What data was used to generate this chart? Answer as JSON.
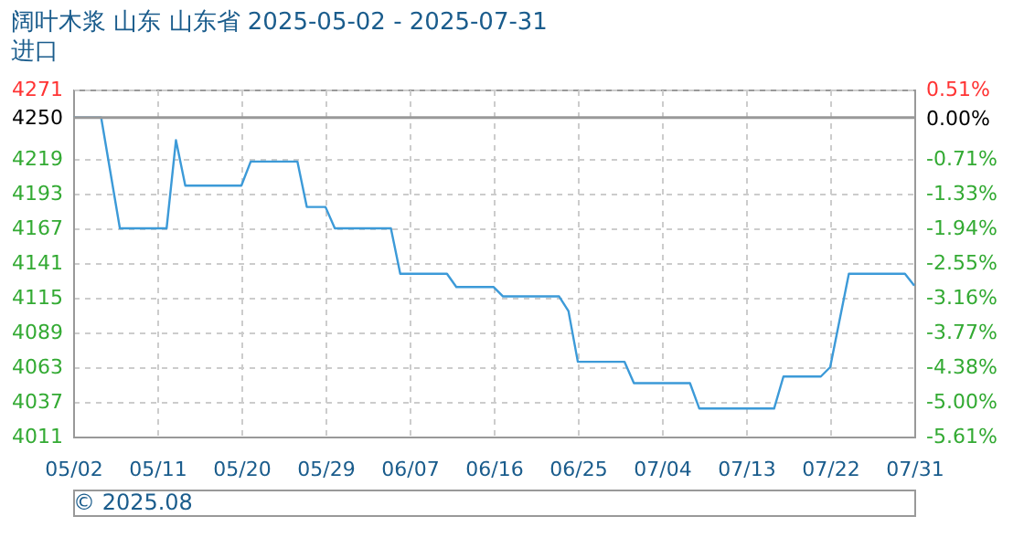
{
  "chart_data": {
    "type": "line",
    "title": "阔叶木浆 山东 山东省 2025-05-02 - 2025-07-31",
    "subtitle": "进口",
    "x": [
      "2025-05-02",
      "2025-05-05",
      "2025-05-07",
      "2025-05-12",
      "2025-05-13",
      "2025-05-14",
      "2025-05-20",
      "2025-05-21",
      "2025-05-26",
      "2025-05-27",
      "2025-05-29",
      "2025-05-30",
      "2025-06-05",
      "2025-06-06",
      "2025-06-11",
      "2025-06-12",
      "2025-06-16",
      "2025-06-17",
      "2025-06-23",
      "2025-06-24",
      "2025-06-25",
      "2025-06-30",
      "2025-07-01",
      "2025-07-07",
      "2025-07-08",
      "2025-07-16",
      "2025-07-17",
      "2025-07-21",
      "2025-07-22",
      "2025-07-24",
      "2025-07-30",
      "2025-07-31"
    ],
    "series": [
      {
        "color": "#3c9ad8",
        "values": [
          4250,
          4250,
          4167,
          4167,
          4233,
          4199,
          4199,
          4217,
          4217,
          4183,
          4183,
          4167,
          4167,
          4133,
          4133,
          4123,
          4123,
          4116,
          4116,
          4105,
          4067,
          4067,
          4051,
          4051,
          4032,
          4032,
          4056,
          4056,
          4063,
          4133,
          4133,
          4124
        ]
      }
    ],
    "xlim": [
      "2025-05-02",
      "2025-07-31"
    ],
    "xticks": [
      {
        "value": "2025-05-02",
        "label": "05/02"
      },
      {
        "value": "2025-05-11",
        "label": "05/11"
      },
      {
        "value": "2025-05-20",
        "label": "05/20"
      },
      {
        "value": "2025-05-29",
        "label": "05/29"
      },
      {
        "value": "2025-06-07",
        "label": "06/07"
      },
      {
        "value": "2025-06-16",
        "label": "06/16"
      },
      {
        "value": "2025-06-25",
        "label": "06/25"
      },
      {
        "value": "2025-07-04",
        "label": "07/04"
      },
      {
        "value": "2025-07-13",
        "label": "07/13"
      },
      {
        "value": "2025-07-22",
        "label": "07/22"
      },
      {
        "value": "2025-07-31",
        "label": "07/31"
      }
    ],
    "ylim": [
      4011,
      4271
    ],
    "yticks": [
      4011,
      4037,
      4063,
      4089,
      4115,
      4141,
      4167,
      4193,
      4219,
      4250,
      4271
    ],
    "y2lim": [
      -5.61,
      0.51
    ],
    "y2ticks": [
      {
        "value": -5.61,
        "label": "-5.61%"
      },
      {
        "value": -5.0,
        "label": "-5.00%"
      },
      {
        "value": -4.38,
        "label": "-4.38%"
      },
      {
        "value": -3.77,
        "label": "-3.77%"
      },
      {
        "value": -3.16,
        "label": "-3.16%"
      },
      {
        "value": -2.55,
        "label": "-2.55%"
      },
      {
        "value": -1.94,
        "label": "-1.94%"
      },
      {
        "value": -1.33,
        "label": "-1.33%"
      },
      {
        "value": -0.71,
        "label": "-0.71%"
      },
      {
        "value": 0.0,
        "label": "0.00%"
      },
      {
        "value": 0.51,
        "label": "0.51%"
      }
    ],
    "ref_lines": [
      {
        "axis": "y",
        "value": 4250,
        "color": "#999999"
      }
    ],
    "grid": true,
    "legend": false,
    "marker": "none",
    "line_style": "solid",
    "annotations": [
      "© 2025.08"
    ]
  }
}
